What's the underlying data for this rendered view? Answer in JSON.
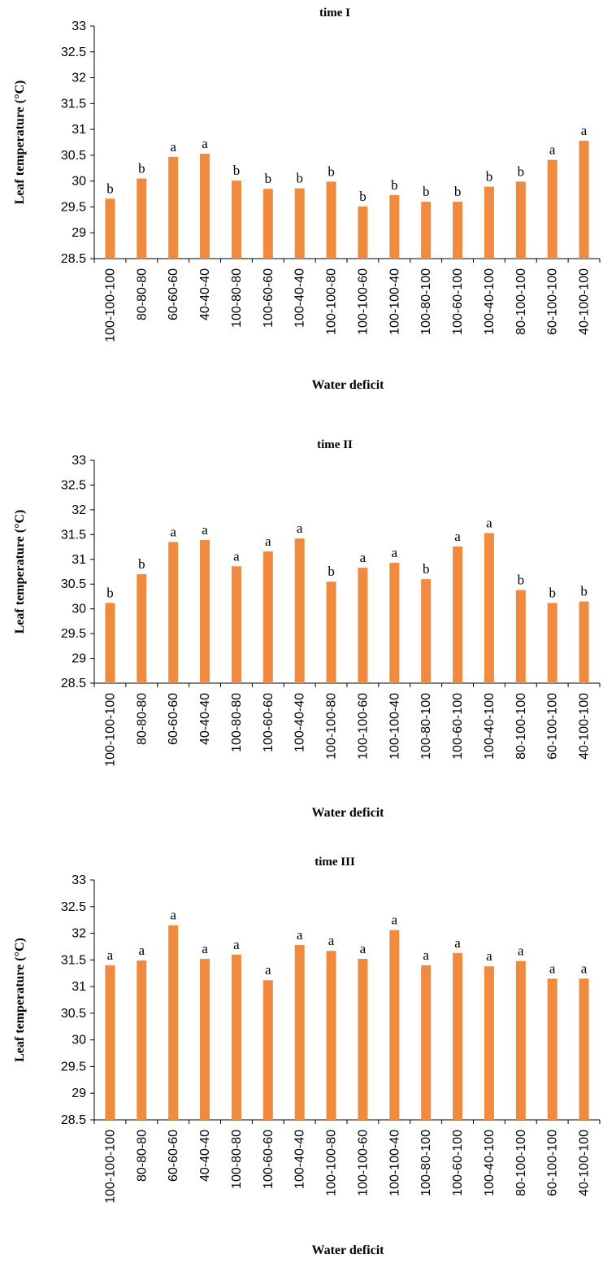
{
  "chart_data": [
    {
      "type": "bar",
      "title": "time I",
      "xlabel": "Water deficit",
      "ylabel": "Leaf temperature (°C)",
      "ylim": [
        28.5,
        33
      ],
      "yticks": [
        "28.5",
        "29",
        "29.5",
        "30",
        "30.5",
        "31",
        "31.5",
        "32",
        "32.5",
        "33"
      ],
      "grid": false,
      "bar_color": "#F08A3E",
      "categories": [
        "100-100-100",
        "80-80-80",
        "60-60-60",
        "40-40-40",
        "100-80-80",
        "100-60-60",
        "100-40-40",
        "100-100-80",
        "100-100-60",
        "100-100-40",
        "100-80-100",
        "100-60-100",
        "100-40-100",
        "80-100-100",
        "60-100-100",
        "40-100-100"
      ],
      "values": [
        29.66,
        30.05,
        30.47,
        30.53,
        30.01,
        29.85,
        29.86,
        29.99,
        29.51,
        29.73,
        29.6,
        29.6,
        29.89,
        29.99,
        30.41,
        30.78
      ],
      "labels": [
        "b",
        "b",
        "a",
        "a",
        "b",
        "b",
        "b",
        "b",
        "b",
        "b",
        "b",
        "b",
        "b",
        "b",
        "a",
        "a"
      ]
    },
    {
      "type": "bar",
      "title": "time II",
      "xlabel": "Water deficit",
      "ylabel": "Leaf temperature (°C)",
      "ylim": [
        28.5,
        33
      ],
      "yticks": [
        "28.5",
        "29",
        "29.5",
        "30",
        "30.5",
        "31",
        "31.5",
        "32",
        "32.5",
        "33"
      ],
      "grid": false,
      "bar_color": "#F08A3E",
      "categories": [
        "100-100-100",
        "80-80-80",
        "60-60-60",
        "40-40-40",
        "100-80-80",
        "100-60-60",
        "100-40-40",
        "100-100-80",
        "100-100-60",
        "100-100-40",
        "100-80-100",
        "100-60-100",
        "100-40-100",
        "80-100-100",
        "60-100-100",
        "40-100-100"
      ],
      "values": [
        30.12,
        30.7,
        31.35,
        31.39,
        30.86,
        31.16,
        31.42,
        30.55,
        30.83,
        30.93,
        30.6,
        31.26,
        31.53,
        30.38,
        30.12,
        30.15
      ],
      "labels": [
        "b",
        "b",
        "a",
        "a",
        "a",
        "a",
        "a",
        "b",
        "a",
        "a",
        "b",
        "a",
        "a",
        "b",
        "b",
        "b"
      ]
    },
    {
      "type": "bar",
      "title": "time III",
      "xlabel": "Water deficit",
      "ylabel": "Leaf temperature (°C)",
      "ylim": [
        28.5,
        33
      ],
      "yticks": [
        "28.5",
        "29",
        "29.5",
        "30",
        "30.5",
        "31",
        "31.5",
        "32",
        "32.5",
        "33"
      ],
      "grid": false,
      "bar_color": "#F08A3E",
      "categories": [
        "100-100-100",
        "80-80-80",
        "60-60-60",
        "40-40-40",
        "100-80-80",
        "100-60-60",
        "100-40-40",
        "100-100-80",
        "100-100-60",
        "100-100-40",
        "100-80-100",
        "100-60-100",
        "100-40-100",
        "80-100-100",
        "60-100-100",
        "40-100-100"
      ],
      "values": [
        31.4,
        31.49,
        32.15,
        31.52,
        31.6,
        31.12,
        31.78,
        31.67,
        31.52,
        32.06,
        31.4,
        31.63,
        31.38,
        31.48,
        31.15,
        31.15
      ],
      "labels": [
        "a",
        "a",
        "a",
        "a",
        "a",
        "a",
        "a",
        "a",
        "a",
        "a",
        "a",
        "a",
        "a",
        "a",
        "a",
        "a"
      ]
    }
  ]
}
